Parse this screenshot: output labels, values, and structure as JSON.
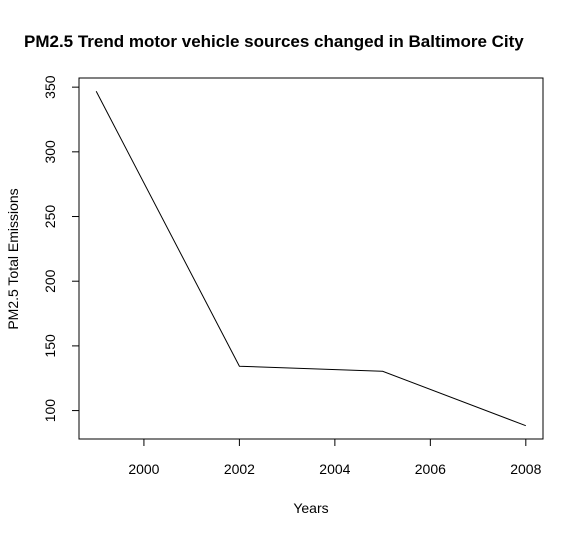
{
  "chart_data": {
    "type": "line",
    "title": "PM2.5 Trend motor vehicle sources changed in Baltimore City",
    "xlabel": "Years",
    "ylabel": "PM2.5 Total Emissions",
    "x": [
      1999,
      2002,
      2005,
      2008
    ],
    "series": [
      {
        "values": [
          346.8,
          134.3,
          130.4,
          88.3
        ]
      }
    ],
    "xticks": [
      2000,
      2002,
      2004,
      2006,
      2008
    ],
    "yticks": [
      100,
      150,
      200,
      250,
      300,
      350
    ],
    "xlim": [
      1998.64,
      2008.36
    ],
    "ylim": [
      78.03,
      357.07
    ],
    "grid": false,
    "line_color": "#000000"
  }
}
